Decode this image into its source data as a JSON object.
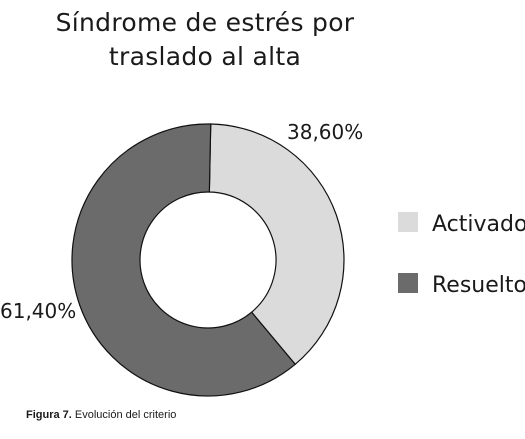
{
  "chart_data": {
    "type": "pie",
    "style": "donut",
    "title_lines": [
      "Síndrome de estrés por",
      "traslado al alta"
    ],
    "categories": [
      "Activado",
      "Resuelto"
    ],
    "values": [
      38.6,
      61.4
    ],
    "value_labels": [
      "38,60%",
      "61,40%"
    ],
    "colors": [
      "#dbdbdb",
      "#6b6b6b"
    ],
    "legend_position": "right"
  },
  "caption": {
    "figure_label": "Figura 7.",
    "text": "Evolución del criterio"
  }
}
